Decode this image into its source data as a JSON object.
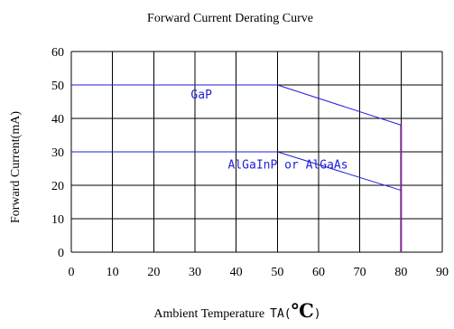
{
  "chart_data": {
    "type": "line",
    "title": "Forward Current Derating Curve",
    "xlabel_main": "Ambient Temperature",
    "xlabel_unit_prefix": "TA(",
    "xlabel_unit_symbol": "℃",
    "xlabel_unit_suffix": ")",
    "ylabel": "Forward Current(mA)",
    "xlim": [
      0,
      90
    ],
    "ylim": [
      0,
      60
    ],
    "x_ticks": [
      0,
      10,
      20,
      30,
      40,
      50,
      60,
      70,
      80,
      90
    ],
    "y_ticks": [
      0,
      10,
      20,
      30,
      40,
      50,
      60
    ],
    "grid": true,
    "legend": "none",
    "colors": {
      "curve": "#1f1fd6",
      "cutoff": "#7a2a8c",
      "grid": "#000000"
    },
    "series": [
      {
        "label": "GaP",
        "label_at": [
          29,
          46
        ],
        "x": [
          0,
          50,
          80,
          80
        ],
        "y": [
          50,
          50,
          38,
          0
        ]
      },
      {
        "label": "AlGaInP or AlGaAs",
        "label_at": [
          38,
          25
        ],
        "x": [
          0,
          50,
          80
        ],
        "y": [
          30,
          30,
          18.5
        ]
      }
    ]
  }
}
